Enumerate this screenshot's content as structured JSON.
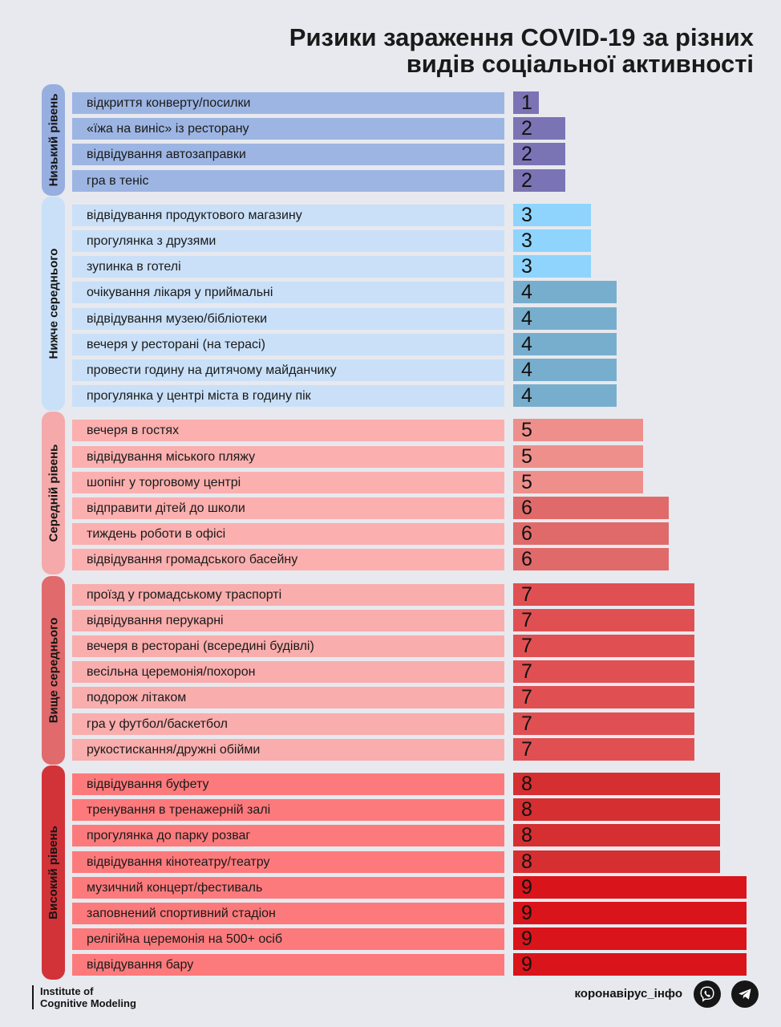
{
  "title": {
    "line1": "Ризики зараження COVID-19 за різних",
    "line2": "видів соціальної активності"
  },
  "chart_data": {
    "type": "bar",
    "title": "Ризики зараження COVID-19 за різних видів соціальної активності",
    "xlabel": "",
    "ylabel": "",
    "xlim": [
      0,
      9
    ],
    "groups": [
      {
        "name": "Низький рівень",
        "color": "#97aee0",
        "items": [
          {
            "label": "відкриття конверту/посилки",
            "value": 1
          },
          {
            "label": "«їжа на виніс» із ресторану",
            "value": 2
          },
          {
            "label": "відвідування автозаправки",
            "value": 2
          },
          {
            "label": "гра в теніс",
            "value": 2
          }
        ]
      },
      {
        "name": "Нижче середнього",
        "color": "#c9e0f8",
        "items": [
          {
            "label": "відвідування продуктового магазину",
            "value": 3
          },
          {
            "label": "прогулянка з друзями",
            "value": 3
          },
          {
            "label": "зупинка в готелі",
            "value": 3
          },
          {
            "label": "очікування лікаря у приймальні",
            "value": 4
          },
          {
            "label": "відвідування музею/бібліотеки",
            "value": 4
          },
          {
            "label": "вечеря у ресторані (на терасі)",
            "value": 4
          },
          {
            "label": "провести годину на дитячому майданчику",
            "value": 4
          },
          {
            "label": "прогулянка у центрі міста в годину пік",
            "value": 4
          }
        ]
      },
      {
        "name": "Середній рівень",
        "color": "#f6a9aa",
        "items": [
          {
            "label": "вечеря в гостях",
            "value": 5
          },
          {
            "label": "відвідування міського пляжу",
            "value": 5
          },
          {
            "label": "шопінг у торговому центрі",
            "value": 5
          },
          {
            "label": "відправити дітей до школи",
            "value": 6
          },
          {
            "label": "тиждень роботи в офісі",
            "value": 6
          },
          {
            "label": "відвідування громадського басейну",
            "value": 6
          }
        ]
      },
      {
        "name": "Вище середнього",
        "color": "#e06a6c",
        "items": [
          {
            "label": "проїзд у громадському траспорті",
            "value": 7
          },
          {
            "label": "відвідування перукарні",
            "value": 7
          },
          {
            "label": "вечеря в ресторані (всередині будівлі)",
            "value": 7
          },
          {
            "label": "весільна церемонія/похорон",
            "value": 7
          },
          {
            "label": "подорож літаком",
            "value": 7
          },
          {
            "label": "гра у футбол/баскетбол",
            "value": 7
          },
          {
            "label": "рукостискання/дружні обійми",
            "value": 7
          }
        ]
      },
      {
        "name": "Високий рівень",
        "color": "#d13339",
        "items": [
          {
            "label": "відвідування буфету",
            "value": 8
          },
          {
            "label": "тренування в тренажерній залі",
            "value": 8
          },
          {
            "label": "прогулянка до парку розваг",
            "value": 8
          },
          {
            "label": "відвідування кінотеатру/театру",
            "value": 8
          },
          {
            "label": "музичний концерт/фестиваль",
            "value": 9
          },
          {
            "label": "заповнений спортивний стадіон",
            "value": 9
          },
          {
            "label": "релігійна церемонія на 500+ осіб",
            "value": 9
          },
          {
            "label": "відвідування бару",
            "value": 9
          }
        ]
      }
    ],
    "label_box_colors": [
      "#9db5e3",
      "#c9e0f8",
      "#fbafaf",
      "#f9adad",
      "#fc7a7c"
    ],
    "value_colors": {
      "1": "#7a74b5",
      "2": "#7a74b5",
      "3": "#8fd4fc",
      "4": "#78aecd",
      "5": "#ee8f8c",
      "6": "#e06a6a",
      "7": "#e05053",
      "8": "#d52f31",
      "9": "#da141b"
    }
  },
  "footer": {
    "institute_line1": "Institute of",
    "institute_line2": "Cognitive Modeling",
    "brand": "коронавірус_інфо",
    "icons": [
      "viber-icon",
      "telegram-icon"
    ]
  }
}
